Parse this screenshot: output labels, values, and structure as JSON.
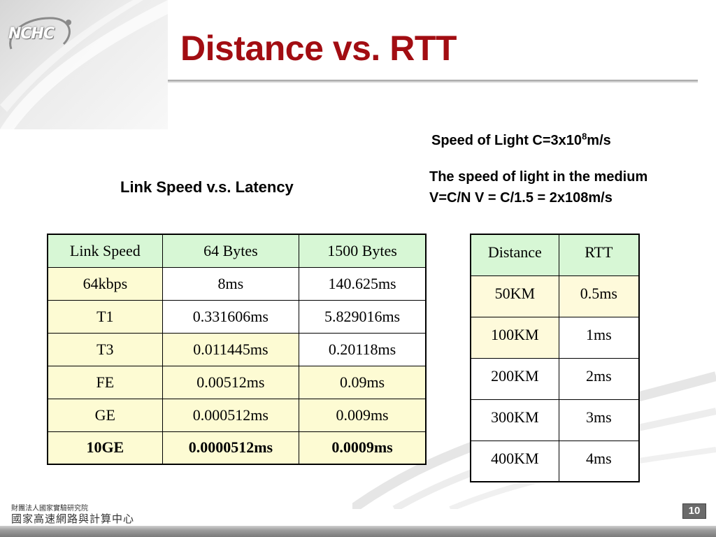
{
  "header": {
    "logo_text": "NCHC",
    "title": "Distance vs. RTT"
  },
  "notes": {
    "light_speed_prefix": "Speed of Light C=3x10",
    "light_speed_exp": "8",
    "light_speed_suffix": "m/s",
    "medium_line1": "The speed of light in the medium",
    "medium_line2": "V=C/N  V = C/1.5 = 2x108m/s"
  },
  "latency_table": {
    "caption": "Link Speed v.s. Latency",
    "headers": [
      "Link Speed",
      "64 Bytes",
      "1500 Bytes"
    ],
    "rows": [
      [
        "64kbps",
        "8ms",
        "140.625ms"
      ],
      [
        "T1",
        "0.331606ms",
        "5.829016ms"
      ],
      [
        "T3",
        "0.011445ms",
        "0.20118ms"
      ],
      [
        "FE",
        "0.00512ms",
        "0.09ms"
      ],
      [
        "GE",
        "0.000512ms",
        "0.009ms"
      ],
      [
        "10GE",
        "0.0000512ms",
        "0.0009ms"
      ]
    ]
  },
  "rtt_table": {
    "headers": [
      "Distance",
      "RTT"
    ],
    "rows": [
      [
        "50KM",
        "0.5ms"
      ],
      [
        "100KM",
        "1ms"
      ],
      [
        "200KM",
        "2ms"
      ],
      [
        "300KM",
        "3ms"
      ],
      [
        "400KM",
        "4ms"
      ]
    ]
  },
  "footer": {
    "org_line1": "財團法人國家實驗研究院",
    "org_line2": "國家高速網路與計算中心",
    "page_number": "10"
  },
  "colors": {
    "title": "#a20d12",
    "header_cell": "#d7f7d5",
    "highlight_cell": "#fdfbd3"
  }
}
